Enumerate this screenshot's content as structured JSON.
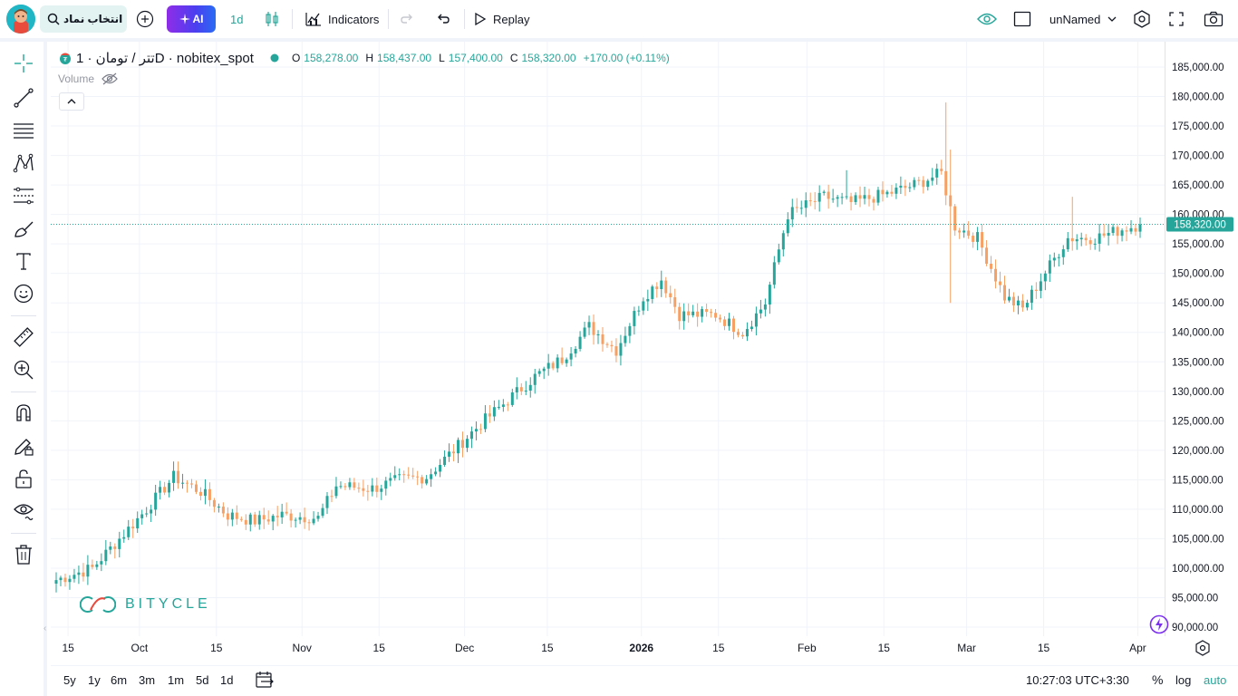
{
  "topbar": {
    "symbol_button_label": "انتخاب نماد",
    "ai_label": "AI",
    "interval": "1d",
    "indicators_label": "Indicators",
    "replay_label": "Replay",
    "layout_name": "unNamed"
  },
  "legend": {
    "symbol": "تتر / تومان · 1D · nobitex_spot",
    "open_label": "O",
    "open": "158,278.00",
    "high_label": "H",
    "high": "158,437.00",
    "low_label": "L",
    "low": "157,400.00",
    "close_label": "C",
    "close": "158,320.00",
    "change": "+170.00 (+0.11%)",
    "volume_label": "Volume"
  },
  "watermark": "BITYCLE",
  "last_price_label": "158,320.00",
  "bottom": {
    "ranges": [
      "5y",
      "1y",
      "6m",
      "3m",
      "1m",
      "5d",
      "1d"
    ],
    "clock": "10:27:03 UTC+3:30",
    "percent": "%",
    "log": "log",
    "auto": "auto"
  },
  "colors": {
    "up": "#26a69a",
    "down": "#f7a064",
    "accent": "#26a69a"
  },
  "chart_data": {
    "type": "candlestick",
    "title": "تتر / تومان · 1D · nobitex_spot",
    "ylim": [
      90000,
      185000
    ],
    "y_ticks": [
      "185,000.00",
      "180,000.00",
      "175,000.00",
      "170,000.00",
      "165,000.00",
      "160,000.00",
      "155,000.00",
      "150,000.00",
      "145,000.00",
      "140,000.00",
      "135,000.00",
      "130,000.00",
      "125,000.00",
      "120,000.00",
      "115,000.00",
      "110,000.00",
      "105,000.00",
      "100,000.00",
      "95,000.00",
      "90,000.00"
    ],
    "x_ticks": [
      "15",
      "Oct",
      "15",
      "Nov",
      "15",
      "Dec",
      "15",
      "2026",
      "15",
      "Feb",
      "15",
      "Mar",
      "15",
      "Apr"
    ],
    "x_ticks_bold": [
      false,
      false,
      false,
      false,
      false,
      false,
      false,
      true,
      false,
      false,
      false,
      false,
      false,
      false
    ],
    "last_price": 158320,
    "anchors": [
      [
        0,
        98000
      ],
      [
        8,
        100000
      ],
      [
        14,
        105000
      ],
      [
        20,
        110000
      ],
      [
        26,
        115500
      ],
      [
        32,
        113000
      ],
      [
        38,
        109000
      ],
      [
        44,
        108000
      ],
      [
        50,
        109000
      ],
      [
        58,
        108500
      ],
      [
        62,
        114000
      ],
      [
        70,
        113500
      ],
      [
        76,
        115000
      ],
      [
        82,
        115500
      ],
      [
        88,
        120000
      ],
      [
        94,
        124500
      ],
      [
        100,
        128500
      ],
      [
        106,
        132500
      ],
      [
        112,
        135500
      ],
      [
        118,
        141000
      ],
      [
        124,
        137000
      ],
      [
        130,
        146000
      ],
      [
        134,
        149000
      ],
      [
        138,
        143000
      ],
      [
        146,
        143000
      ],
      [
        152,
        140000
      ],
      [
        157,
        145000
      ],
      [
        162,
        160000
      ],
      [
        170,
        163000
      ],
      [
        176,
        162000
      ],
      [
        184,
        163500
      ],
      [
        190,
        165000
      ],
      [
        196,
        167000
      ],
      [
        199,
        158000
      ],
      [
        204,
        156000
      ],
      [
        210,
        146000
      ],
      [
        214,
        144000
      ],
      [
        218,
        149000
      ],
      [
        224,
        156000
      ],
      [
        230,
        156000
      ],
      [
        236,
        157500
      ],
      [
        240,
        158320
      ]
    ],
    "spikes": [
      {
        "index": 197,
        "high": 179000
      },
      {
        "index": 198,
        "high": 171000,
        "low": 145000
      },
      {
        "index": 175,
        "high": 167500
      },
      {
        "index": 225,
        "high": 163000
      }
    ]
  }
}
